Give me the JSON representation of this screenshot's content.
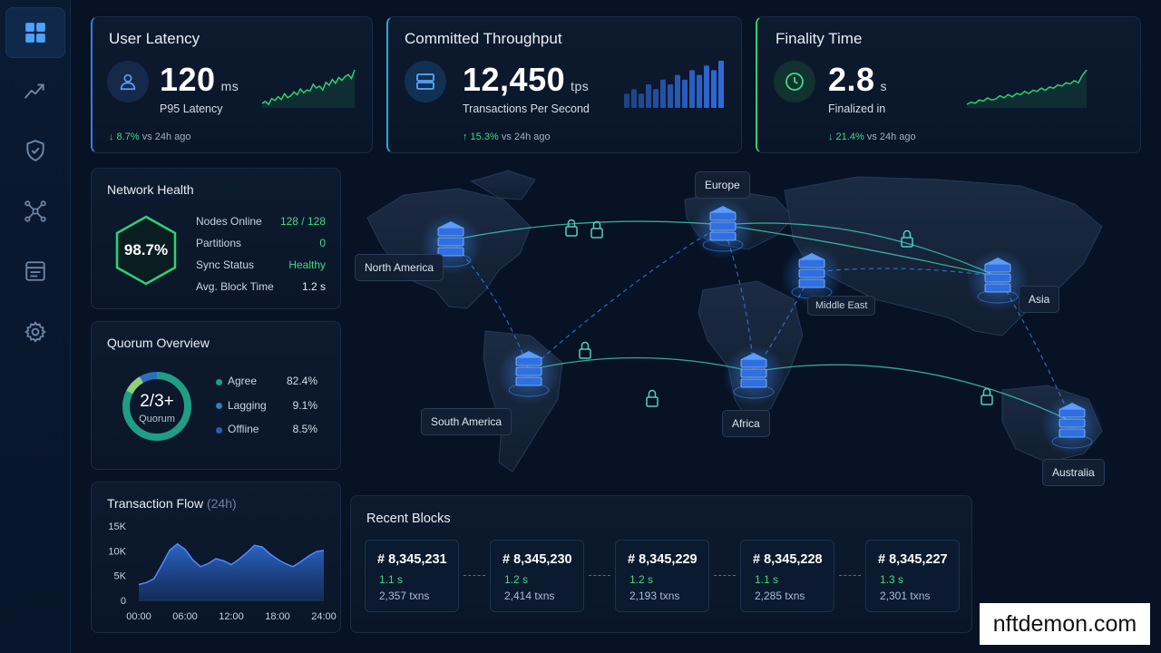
{
  "sidebar": {
    "items": [
      {
        "icon": "dashboard-grid-icon",
        "active": true
      },
      {
        "icon": "trend-line-icon",
        "active": false
      },
      {
        "icon": "shield-check-icon",
        "active": false
      },
      {
        "icon": "network-nodes-icon",
        "active": false
      },
      {
        "icon": "list-document-icon",
        "active": false
      },
      {
        "icon": "gear-icon",
        "active": false
      }
    ]
  },
  "stats": [
    {
      "title": "User Latency",
      "value": "120",
      "unit": "ms",
      "subtitle": "P95 Latency",
      "change": "↓ 8.7%",
      "change_suffix": "vs 24h ago",
      "icon": "user-icon",
      "accent": "#2f7ff0"
    },
    {
      "title": "Committed Throughput",
      "value": "12,450",
      "unit": "tps",
      "subtitle": "Transactions Per Second",
      "change": "↑ 15.3%",
      "change_suffix": "vs 24h ago",
      "icon": "server-icon",
      "accent": "#2fa8d8"
    },
    {
      "title": "Finality Time",
      "value": "2.8",
      "unit": "s",
      "subtitle": "Finalized in",
      "change": "↓ 21.4%",
      "change_suffix": "vs 24h ago",
      "icon": "clock-icon",
      "accent": "#2ed27a"
    }
  ],
  "network_health": {
    "title": "Network Health",
    "score": "98.7%",
    "rows": [
      {
        "label": "Nodes Online",
        "value": "128 / 128",
        "color": "#3ddc84"
      },
      {
        "label": "Partitions",
        "value": "0",
        "color": "#3ddc84"
      },
      {
        "label": "Sync Status",
        "value": "Healthy",
        "color": "#3ddc84"
      },
      {
        "label": "Avg. Block Time",
        "value": "1.2 s",
        "color": "#e6edf7"
      }
    ]
  },
  "quorum": {
    "title": "Quorum Overview",
    "center_value": "2/3+",
    "center_label": "Quorum",
    "segments": [
      {
        "label": "Agree",
        "value": "82.4%",
        "fraction": 0.824,
        "color": "#1f9e86"
      },
      {
        "label": "Lagging",
        "value": "9.1%",
        "fraction": 0.091,
        "color": "#8fd07a"
      },
      {
        "label": "Offline",
        "value": "8.5%",
        "fraction": 0.085,
        "color": "#2b6fc4"
      }
    ],
    "legend_colors": [
      "#1f9e86",
      "#2f7fb8",
      "#2b5fb4"
    ]
  },
  "transaction_flow": {
    "title": "Transaction Flow",
    "title_suffix": "(24h)"
  },
  "map": {
    "labels": [
      "Europe",
      "North America",
      "Asia",
      "South America",
      "Africa",
      "Australia",
      "Middle East"
    ]
  },
  "recent_blocks": {
    "title": "Recent Blocks",
    "blocks": [
      {
        "number": "# 8,345,231",
        "time": "1.1 s",
        "txns": "2,357 txns"
      },
      {
        "number": "# 8,345,230",
        "time": "1.2 s",
        "txns": "2,414 txns"
      },
      {
        "number": "# 8,345,229",
        "time": "1.2 s",
        "txns": "2,193 txns"
      },
      {
        "number": "# 8,345,228",
        "time": "1.1 s",
        "txns": "2,285 txns"
      },
      {
        "number": "# 8,345,227",
        "time": "1.3 s",
        "txns": "2,301 txns"
      }
    ]
  },
  "watermark": "nftdemon.com",
  "chart_data": [
    {
      "type": "area",
      "title": "Transaction Flow (24h)",
      "x_ticks": [
        "00:00",
        "06:00",
        "12:00",
        "18:00",
        "24:00"
      ],
      "y_ticks": [
        "0",
        "5K",
        "10K",
        "15K"
      ],
      "ylim": [
        0,
        15000
      ],
      "x": [
        0,
        1,
        2,
        3,
        4,
        5,
        6,
        7,
        8,
        9,
        10,
        11,
        12,
        13,
        14,
        15,
        16,
        17,
        18,
        19,
        20,
        21,
        22,
        23,
        24
      ],
      "values": [
        3200,
        3600,
        4400,
        7200,
        10100,
        11400,
        10300,
        8200,
        6800,
        7400,
        8400,
        8000,
        7200,
        8300,
        9600,
        11100,
        10800,
        9400,
        8300,
        7400,
        6800,
        7800,
        8900,
        9800,
        10100
      ],
      "color": "#2f6fd8"
    },
    {
      "type": "line",
      "title": "",
      "values": [
        20,
        22,
        19,
        25,
        23,
        27,
        24,
        30,
        26,
        28,
        32,
        29,
        35,
        31,
        34,
        33,
        40,
        36,
        38,
        34,
        42,
        39,
        45,
        41,
        47,
        44,
        48,
        50,
        46,
        55
      ],
      "color": "#2fd070"
    },
    {
      "type": "bar",
      "title": "",
      "values": [
        3,
        4,
        3,
        5,
        4,
        6,
        5,
        7,
        6,
        8,
        7,
        9,
        8,
        10
      ],
      "color": "#2f6fe0"
    },
    {
      "type": "line",
      "title": "",
      "values": [
        18,
        20,
        19,
        22,
        21,
        24,
        22,
        23,
        26,
        24,
        27,
        25,
        28,
        27,
        30,
        28,
        31,
        30,
        33,
        31,
        34,
        33,
        36,
        35,
        38,
        37,
        40,
        38,
        45,
        50
      ],
      "color": "#2fd070"
    }
  ]
}
